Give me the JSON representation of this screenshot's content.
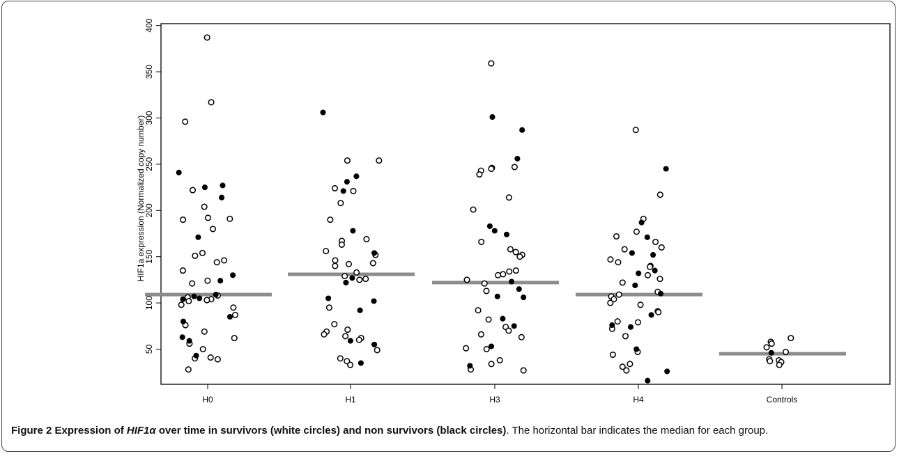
{
  "chart_data": {
    "type": "scatter",
    "subtype": "strip-chart-with-median-bars",
    "ylabel": "HIF1a expression (Normalized copy number)",
    "xlabel": "",
    "ylim": [
      12,
      402
    ],
    "yticks": [
      50,
      100,
      150,
      200,
      250,
      300,
      350,
      400
    ],
    "categories": [
      "H0",
      "H1",
      "H3",
      "H4",
      "Controls"
    ],
    "grid": false,
    "medians": [
      109,
      131,
      122,
      109,
      45
    ],
    "series": [
      {
        "marker": "open-circle",
        "points": [
          [
            "H0",
            387
          ],
          [
            "H0",
            317
          ],
          [
            "H0",
            296
          ],
          [
            "H0",
            222
          ],
          [
            "H0",
            204
          ],
          [
            "H0",
            192
          ],
          [
            "H0",
            190
          ],
          [
            "H0",
            191
          ],
          [
            "H0",
            180
          ],
          [
            "H0",
            154
          ],
          [
            "H0",
            151
          ],
          [
            "H0",
            146
          ],
          [
            "H0",
            144
          ],
          [
            "H0",
            135
          ],
          [
            "H0",
            124
          ],
          [
            "H0",
            121
          ],
          [
            "H0",
            108
          ],
          [
            "H0",
            106
          ],
          [
            "H0",
            104
          ],
          [
            "H0",
            103
          ],
          [
            "H0",
            102
          ],
          [
            "H0",
            98
          ],
          [
            "H0",
            95
          ],
          [
            "H0",
            87
          ],
          [
            "H0",
            76
          ],
          [
            "H0",
            69
          ],
          [
            "H0",
            62
          ],
          [
            "H0",
            56
          ],
          [
            "H0",
            50
          ],
          [
            "H0",
            41
          ],
          [
            "H0",
            39
          ],
          [
            "H0",
            40
          ],
          [
            "H0",
            28
          ],
          [
            "H1",
            254
          ],
          [
            "H1",
            254
          ],
          [
            "H1",
            224
          ],
          [
            "H1",
            221
          ],
          [
            "H1",
            208
          ],
          [
            "H1",
            190
          ],
          [
            "H1",
            169
          ],
          [
            "H1",
            167
          ],
          [
            "H1",
            163
          ],
          [
            "H1",
            156
          ],
          [
            "H1",
            152
          ],
          [
            "H1",
            146
          ],
          [
            "H1",
            143
          ],
          [
            "H1",
            142
          ],
          [
            "H1",
            140
          ],
          [
            "H1",
            133
          ],
          [
            "H1",
            129
          ],
          [
            "H1",
            126
          ],
          [
            "H1",
            125
          ],
          [
            "H1",
            95
          ],
          [
            "H1",
            77
          ],
          [
            "H1",
            71
          ],
          [
            "H1",
            69
          ],
          [
            "H1",
            66
          ],
          [
            "H1",
            64
          ],
          [
            "H1",
            62
          ],
          [
            "H1",
            60
          ],
          [
            "H1",
            49
          ],
          [
            "H1",
            40
          ],
          [
            "H1",
            37
          ],
          [
            "H1",
            33
          ],
          [
            "H3",
            359
          ],
          [
            "H3",
            247
          ],
          [
            "H3",
            246
          ],
          [
            "H3",
            245
          ],
          [
            "H3",
            243
          ],
          [
            "H3",
            239
          ],
          [
            "H3",
            214
          ],
          [
            "H3",
            201
          ],
          [
            "H3",
            166
          ],
          [
            "H3",
            158
          ],
          [
            "H3",
            155
          ],
          [
            "H3",
            152
          ],
          [
            "H3",
            150
          ],
          [
            "H3",
            135
          ],
          [
            "H3",
            134
          ],
          [
            "H3",
            131
          ],
          [
            "H3",
            130
          ],
          [
            "H3",
            125
          ],
          [
            "H3",
            121
          ],
          [
            "H3",
            113
          ],
          [
            "H3",
            92
          ],
          [
            "H3",
            82
          ],
          [
            "H3",
            74
          ],
          [
            "H3",
            70
          ],
          [
            "H3",
            66
          ],
          [
            "H3",
            63
          ],
          [
            "H3",
            51
          ],
          [
            "H3",
            50
          ],
          [
            "H3",
            38
          ],
          [
            "H3",
            34
          ],
          [
            "H3",
            28
          ],
          [
            "H3",
            27
          ],
          [
            "H4",
            287
          ],
          [
            "H4",
            217
          ],
          [
            "H4",
            191
          ],
          [
            "H4",
            177
          ],
          [
            "H4",
            172
          ],
          [
            "H4",
            166
          ],
          [
            "H4",
            160
          ],
          [
            "H4",
            158
          ],
          [
            "H4",
            147
          ],
          [
            "H4",
            144
          ],
          [
            "H4",
            140
          ],
          [
            "H4",
            139
          ],
          [
            "H4",
            130
          ],
          [
            "H4",
            126
          ],
          [
            "H4",
            122
          ],
          [
            "H4",
            112
          ],
          [
            "H4",
            109
          ],
          [
            "H4",
            107
          ],
          [
            "H4",
            104
          ],
          [
            "H4",
            100
          ],
          [
            "H4",
            98
          ],
          [
            "H4",
            91
          ],
          [
            "H4",
            90
          ],
          [
            "H4",
            80
          ],
          [
            "H4",
            79
          ],
          [
            "H4",
            72
          ],
          [
            "H4",
            64
          ],
          [
            "H4",
            47
          ],
          [
            "H4",
            44
          ],
          [
            "H4",
            34
          ],
          [
            "H4",
            31
          ],
          [
            "H4",
            27
          ],
          [
            "Controls",
            62
          ],
          [
            "Controls",
            58
          ],
          [
            "Controls",
            56
          ],
          [
            "Controls",
            52
          ],
          [
            "Controls",
            47
          ],
          [
            "Controls",
            39
          ],
          [
            "Controls",
            38
          ],
          [
            "Controls",
            37
          ],
          [
            "Controls",
            36
          ],
          [
            "Controls",
            33
          ]
        ]
      },
      {
        "marker": "filled-circle",
        "points": [
          [
            "H0",
            241
          ],
          [
            "H0",
            227
          ],
          [
            "H0",
            225
          ],
          [
            "H0",
            214
          ],
          [
            "H0",
            171
          ],
          [
            "H0",
            130
          ],
          [
            "H0",
            124
          ],
          [
            "H0",
            109
          ],
          [
            "H0",
            107
          ],
          [
            "H0",
            105
          ],
          [
            "H0",
            104
          ],
          [
            "H0",
            85
          ],
          [
            "H0",
            80
          ],
          [
            "H0",
            63
          ],
          [
            "H0",
            59
          ],
          [
            "H0",
            43
          ],
          [
            "H1",
            306
          ],
          [
            "H1",
            237
          ],
          [
            "H1",
            231
          ],
          [
            "H1",
            221
          ],
          [
            "H1",
            178
          ],
          [
            "H1",
            154
          ],
          [
            "H1",
            127
          ],
          [
            "H1",
            122
          ],
          [
            "H1",
            105
          ],
          [
            "H1",
            102
          ],
          [
            "H1",
            92
          ],
          [
            "H1",
            59
          ],
          [
            "H1",
            55
          ],
          [
            "H1",
            35
          ],
          [
            "H3",
            301
          ],
          [
            "H3",
            287
          ],
          [
            "H3",
            256
          ],
          [
            "H3",
            183
          ],
          [
            "H3",
            178
          ],
          [
            "H3",
            174
          ],
          [
            "H3",
            123
          ],
          [
            "H3",
            115
          ],
          [
            "H3",
            107
          ],
          [
            "H3",
            106
          ],
          [
            "H3",
            83
          ],
          [
            "H3",
            75
          ],
          [
            "H3",
            53
          ],
          [
            "H3",
            32
          ],
          [
            "H4",
            245
          ],
          [
            "H4",
            187
          ],
          [
            "H4",
            171
          ],
          [
            "H4",
            154
          ],
          [
            "H4",
            152
          ],
          [
            "H4",
            135
          ],
          [
            "H4",
            132
          ],
          [
            "H4",
            119
          ],
          [
            "H4",
            110
          ],
          [
            "H4",
            87
          ],
          [
            "H4",
            76
          ],
          [
            "H4",
            74
          ],
          [
            "H4",
            50
          ],
          [
            "H4",
            26
          ],
          [
            "H4",
            16
          ],
          [
            "Controls",
            46
          ]
        ]
      }
    ]
  },
  "caption": {
    "figure_label": "Figure 2",
    "title_pre": "Expression of ",
    "title_gene": "HIF1α",
    "title_post": " over time in survivors (white circles) and non survivors (black circles)",
    "body": ". The horizontal bar indicates the median for each group."
  },
  "colors": {
    "median_bar": "#8c8c8c",
    "marker": "#000000",
    "axis": "#000000"
  }
}
